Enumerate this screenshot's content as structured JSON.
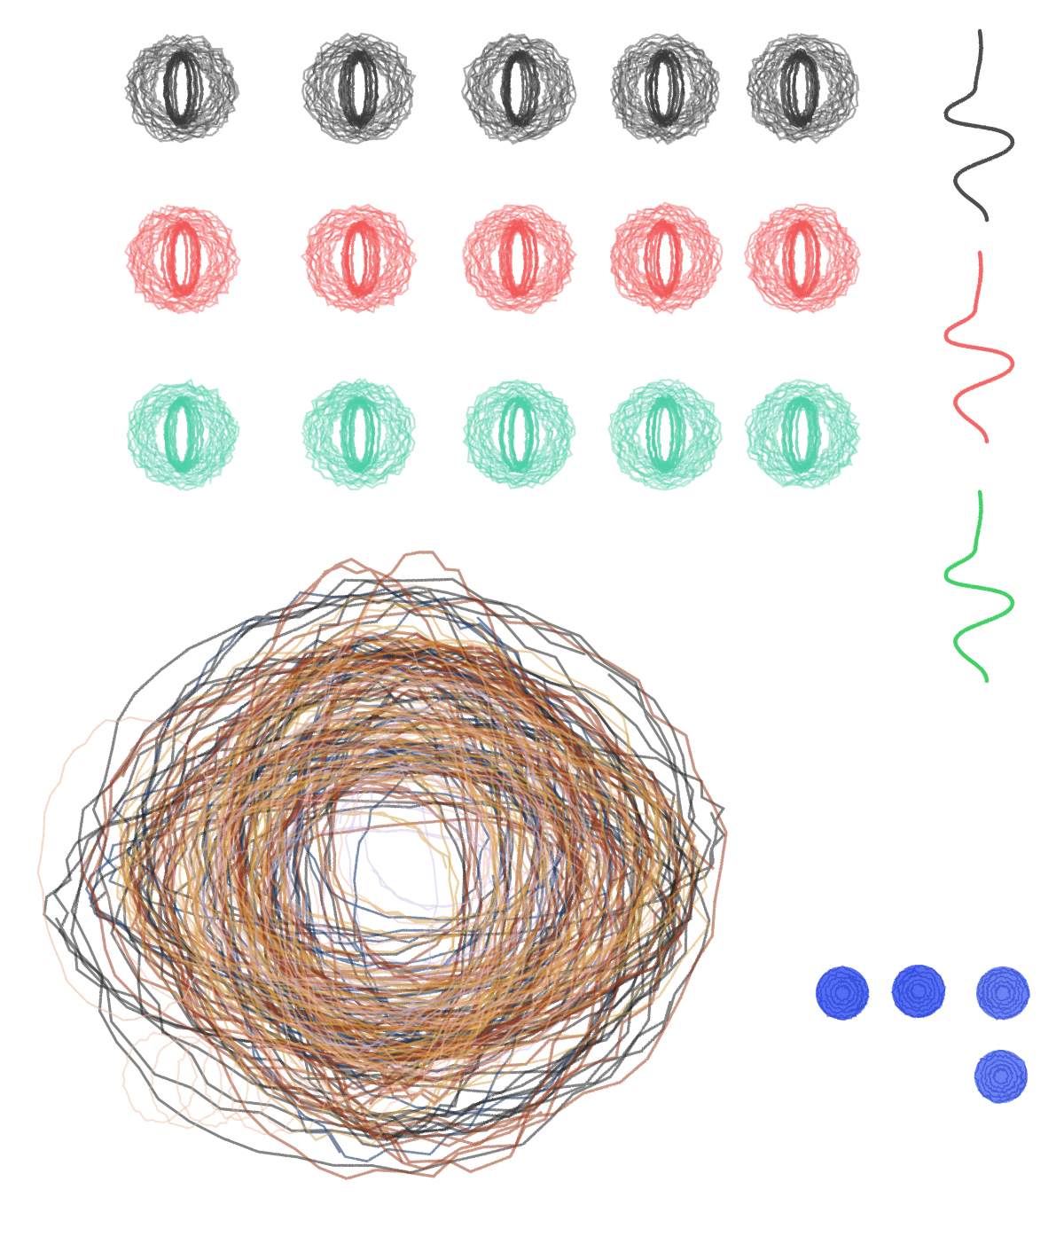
{
  "artwork": {
    "background": "#ffffff",
    "palette": {
      "gray": "#3a3a3a",
      "red": "#f25a5a",
      "teal": "#4fcfa6",
      "green": "#2fcc55",
      "blue": "#2e4ff0",
      "nest_black": "#222222",
      "nest_brown": "#9b3f22",
      "nest_navy": "#1d3e6e",
      "nest_gold": "#d9a048",
      "nest_peach": "#f0b9a0",
      "nest_lavender": "#c7b7e4"
    },
    "swatch_rows": [
      {
        "name": "gray-swatches",
        "color": "#3a3a3a",
        "count": 5
      },
      {
        "name": "red-swatches",
        "color": "#f25a5a",
        "count": 5
      },
      {
        "name": "teal-swatches",
        "color": "#4fcfa6",
        "count": 5
      }
    ],
    "squiggles": [
      {
        "name": "gray-squiggle",
        "color": "#3a3a3a"
      },
      {
        "name": "red-squiggle",
        "color": "#f25a5a"
      },
      {
        "name": "green-squiggle",
        "color": "#2fcc55"
      }
    ],
    "blue_dots": {
      "color": "#2e4ff0",
      "count": 4
    },
    "nest": {
      "colors": [
        "#222222",
        "#9b3f22",
        "#1d3e6e",
        "#d9a048",
        "#f0b9a0",
        "#c7b7e4"
      ]
    }
  }
}
